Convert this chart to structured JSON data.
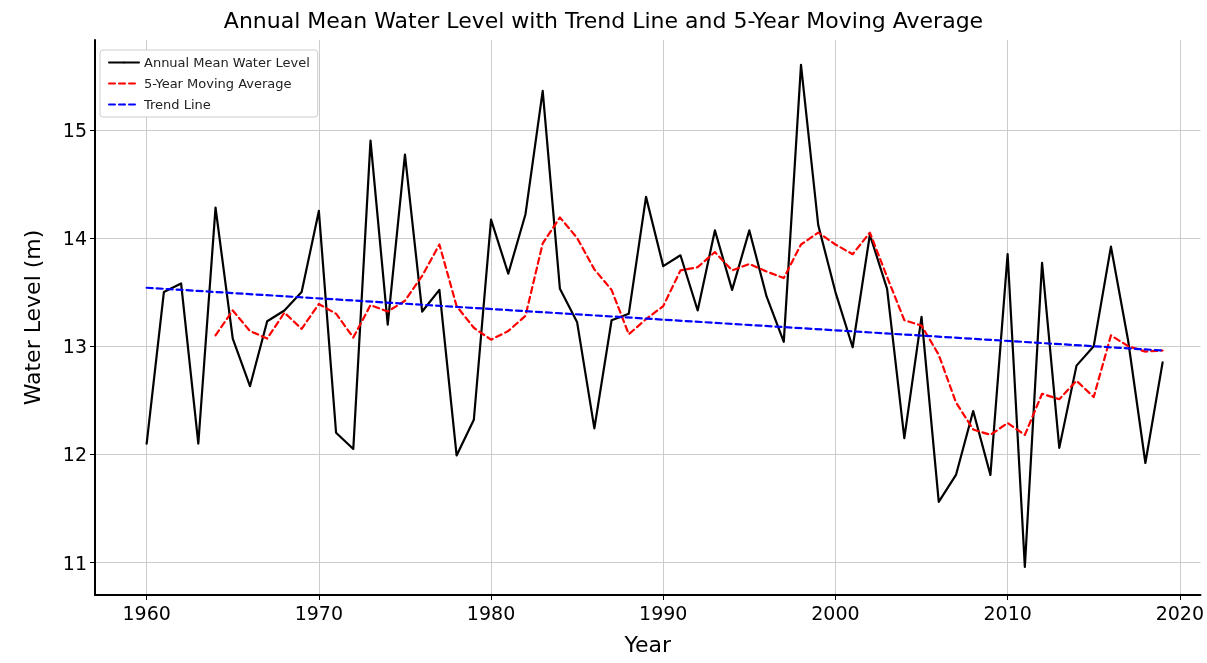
{
  "chart_data": {
    "type": "line",
    "title": "Annual Mean Water Level with Trend Line and 5-Year Moving Average",
    "xlabel": "Year",
    "ylabel": "Water Level (m)",
    "xlim": [
      1957,
      2021.2
    ],
    "xticks": [
      1960,
      1970,
      1980,
      1990,
      2000,
      2010,
      2020
    ],
    "ylim": [
      10.7,
      15.83
    ],
    "yticks": [
      11,
      12,
      13,
      14,
      15
    ],
    "grid": true,
    "legend": "top left",
    "marker": "none",
    "series": [
      {
        "name": "Annual Mean Water Level",
        "color": "#000000",
        "line_style": "solid",
        "x": [
          1960,
          1961,
          1962,
          1963,
          1964,
          1965,
          1966,
          1967,
          1968,
          1969,
          1970,
          1971,
          1972,
          1973,
          1974,
          1975,
          1976,
          1977,
          1978,
          1979,
          1980,
          1981,
          1982,
          1983,
          1984,
          1985,
          1986,
          1987,
          1988,
          1989,
          1990,
          1991,
          1992,
          1993,
          1994,
          1995,
          1996,
          1997,
          1998,
          1999,
          2000,
          2001,
          2002,
          2003,
          2004,
          2005,
          2006,
          2007,
          2008,
          2009,
          2010,
          2011,
          2012,
          2013,
          2014,
          2015,
          2016,
          2017,
          2018,
          2019
        ],
        "values": [
          12.1,
          13.5,
          13.58,
          12.1,
          14.28,
          13.07,
          12.63,
          13.23,
          13.33,
          13.5,
          14.25,
          12.2,
          12.05,
          14.9,
          13.2,
          14.77,
          13.32,
          13.52,
          11.99,
          12.32,
          14.17,
          13.67,
          14.22,
          15.36,
          13.53,
          13.22,
          12.24,
          13.24,
          13.3,
          14.38,
          13.74,
          13.84,
          13.33,
          14.07,
          13.52,
          14.07,
          13.46,
          13.04,
          15.6,
          14.12,
          13.5,
          12.99,
          14.03,
          13.53,
          12.15,
          13.27,
          11.56,
          11.81,
          12.4,
          11.81,
          13.85,
          10.96,
          13.77,
          12.06,
          12.82,
          13.0,
          13.92,
          13.05,
          11.92,
          12.85
        ]
      },
      {
        "name": "5-Year Moving Average",
        "color": "#ff0000",
        "line_style": "dashed",
        "x": [
          1964,
          1965,
          1966,
          1967,
          1968,
          1969,
          1970,
          1971,
          1972,
          1973,
          1974,
          1975,
          1976,
          1977,
          1978,
          1979,
          1980,
          1981,
          1982,
          1983,
          1984,
          1985,
          1986,
          1987,
          1988,
          1989,
          1990,
          1991,
          1992,
          1993,
          1994,
          1995,
          1996,
          1997,
          1998,
          1999,
          2000,
          2001,
          2002,
          2003,
          2004,
          2005,
          2006,
          2007,
          2008,
          2009,
          2010,
          2011,
          2012,
          2013,
          2014,
          2015,
          2016,
          2017,
          2018,
          2019
        ],
        "values": [
          13.1,
          13.33,
          13.14,
          13.07,
          13.31,
          13.16,
          13.39,
          13.3,
          13.08,
          13.38,
          13.32,
          13.42,
          13.65,
          13.94,
          13.37,
          13.17,
          13.06,
          13.14,
          13.28,
          13.95,
          14.19,
          14.0,
          13.71,
          13.52,
          13.11,
          13.25,
          13.37,
          13.7,
          13.73,
          13.87,
          13.7,
          13.76,
          13.69,
          13.63,
          13.94,
          14.05,
          13.94,
          13.85,
          14.05,
          13.64,
          13.24,
          13.19,
          12.92,
          12.48,
          12.23,
          12.18,
          12.29,
          12.18,
          12.56,
          12.51,
          12.68,
          12.53,
          13.1,
          13.0,
          12.95,
          12.96
        ]
      },
      {
        "name": "Trend Line",
        "color": "#0000ff",
        "line_style": "dashed",
        "x": [
          1960,
          2019
        ],
        "values": [
          13.54,
          12.96
        ]
      }
    ]
  }
}
